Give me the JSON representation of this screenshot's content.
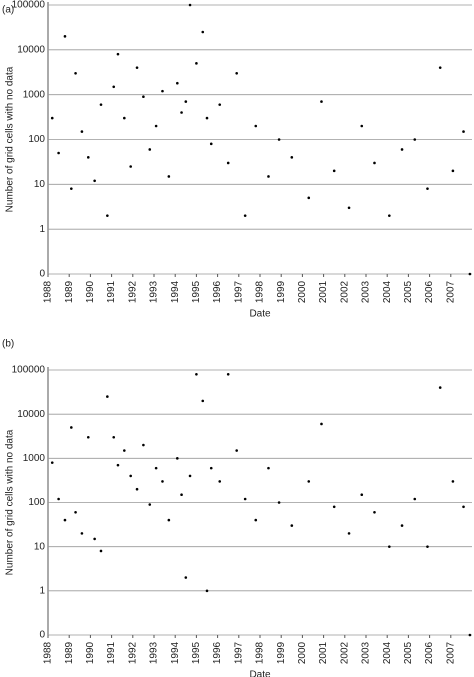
{
  "chart_data": [
    {
      "type": "scatter",
      "label": "(a)",
      "x_label": "Date",
      "y_label": "Number of grid cells with no data",
      "xlim": [
        1988,
        2008
      ],
      "xticks": [
        1988,
        1989,
        1990,
        1991,
        1992,
        1993,
        1994,
        1995,
        1996,
        1997,
        1998,
        1999,
        2000,
        2001,
        2002,
        2003,
        2004,
        2005,
        2006,
        2007
      ],
      "ylim": [
        0,
        100000
      ],
      "yticks": [
        0,
        1,
        10,
        100,
        1000,
        10000,
        100000
      ],
      "yscale": "log",
      "grid": true,
      "series": [
        {
          "color": "#000000",
          "x": [
            1988.2,
            1988.5,
            1988.8,
            1989.1,
            1989.3,
            1989.6,
            1989.9,
            1990.2,
            1990.5,
            1990.8,
            1991.1,
            1991.3,
            1991.6,
            1991.9,
            1992.2,
            1992.5,
            1992.8,
            1993.1,
            1993.4,
            1993.7,
            1994.1,
            1994.3,
            1994.5,
            1994.7,
            1995.0,
            1995.3,
            1995.5,
            1995.7,
            1996.1,
            1996.5,
            1996.9,
            1997.3,
            1997.8,
            1998.4,
            1998.9,
            1999.5,
            2000.3,
            2000.9,
            2001.5,
            2002.2,
            2002.8,
            2003.4,
            2004.1,
            2004.7,
            2005.3,
            2005.9,
            2006.5,
            2007.1,
            2007.6,
            2007.9
          ],
          "values": [
            300,
            50,
            20000,
            8,
            3000,
            150,
            40,
            12,
            600,
            2,
            1500,
            8000,
            300,
            25,
            4000,
            900,
            60,
            200,
            1200,
            15,
            1800,
            400,
            700,
            100000,
            5000,
            25000,
            300,
            80,
            600,
            30,
            3000,
            2,
            200,
            15,
            100,
            40,
            5,
            700,
            20,
            3,
            200,
            30,
            2,
            60,
            100,
            8,
            4000,
            20,
            150,
            0
          ]
        }
      ]
    },
    {
      "type": "scatter",
      "label": "(b)",
      "x_label": "Date",
      "y_label": "Number of grid cells with no data",
      "xlim": [
        1988,
        2008
      ],
      "xticks": [
        1988,
        1989,
        1990,
        1991,
        1992,
        1993,
        1994,
        1995,
        1996,
        1997,
        1998,
        1999,
        2000,
        2001,
        2002,
        2003,
        2004,
        2005,
        2006,
        2007
      ],
      "ylim": [
        0,
        100000
      ],
      "yticks": [
        0,
        1,
        10,
        100,
        1000,
        10000,
        100000
      ],
      "yscale": "log",
      "grid": true,
      "series": [
        {
          "color": "#000000",
          "x": [
            1988.2,
            1988.5,
            1988.8,
            1989.1,
            1989.3,
            1989.6,
            1989.9,
            1990.2,
            1990.5,
            1990.8,
            1991.1,
            1991.3,
            1991.6,
            1991.9,
            1992.2,
            1992.5,
            1992.8,
            1993.1,
            1993.4,
            1993.7,
            1994.1,
            1994.3,
            1994.5,
            1994.7,
            1995.0,
            1995.3,
            1995.5,
            1995.7,
            1996.1,
            1996.5,
            1996.9,
            1997.3,
            1997.8,
            1998.4,
            1998.9,
            1999.5,
            2000.3,
            2000.9,
            2001.5,
            2002.2,
            2002.8,
            2003.4,
            2004.1,
            2004.7,
            2005.3,
            2005.9,
            2006.5,
            2007.1,
            2007.6,
            2007.9
          ],
          "values": [
            800,
            120,
            40,
            5000,
            60,
            20,
            3000,
            15,
            8,
            25000,
            3000,
            700,
            1500,
            400,
            200,
            2000,
            90,
            600,
            300,
            40,
            1000,
            150,
            2,
            400,
            80000,
            20000,
            1,
            600,
            300,
            80000,
            1500,
            120,
            40,
            600,
            100,
            30,
            300,
            6000,
            80,
            20,
            150,
            60,
            10,
            30,
            120,
            10,
            40000,
            300,
            80,
            0
          ]
        }
      ]
    }
  ]
}
